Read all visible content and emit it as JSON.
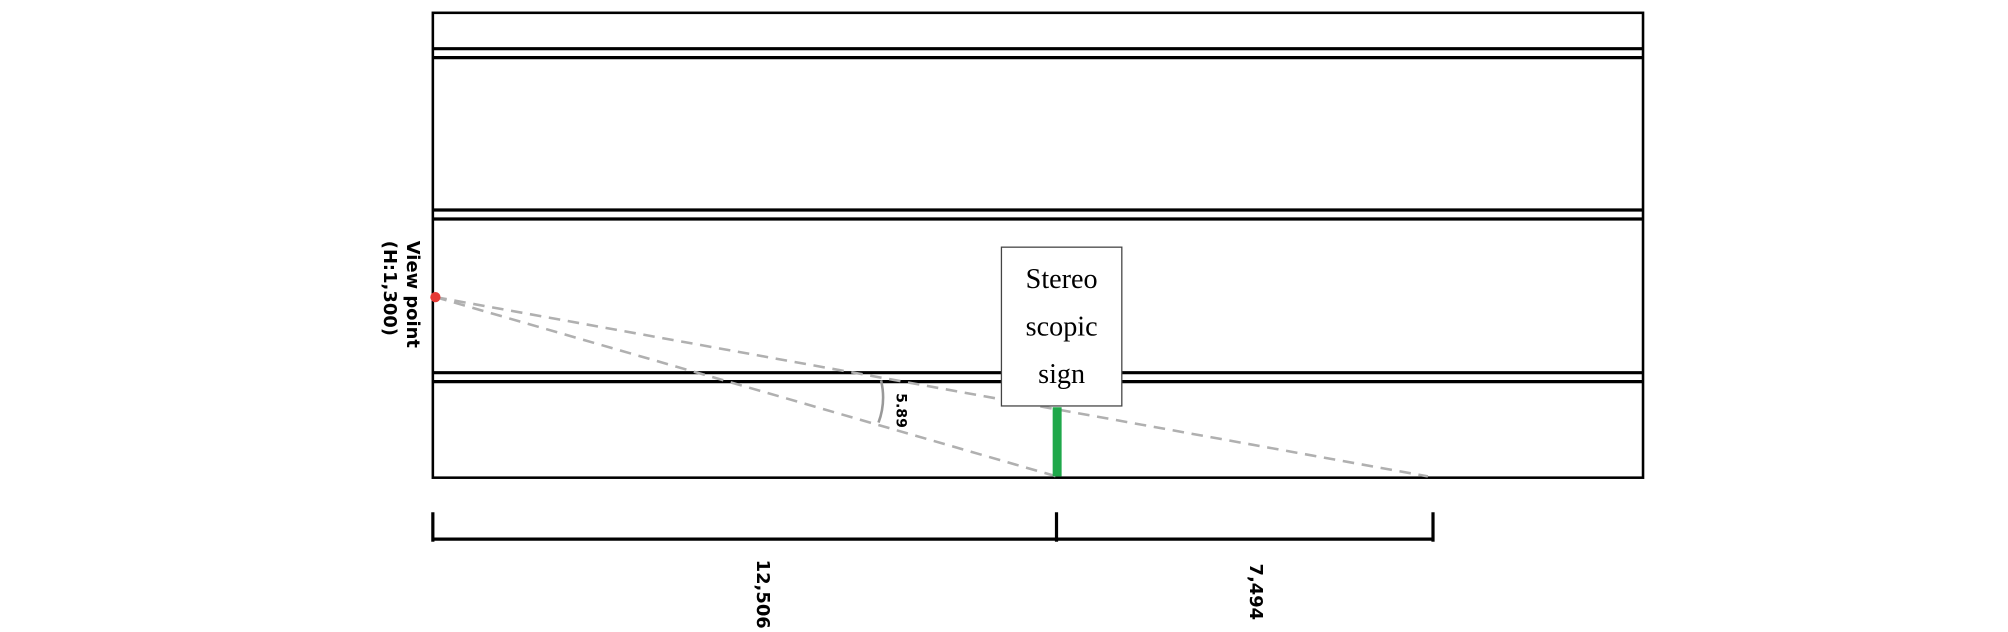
{
  "view_point": {
    "label": "View point",
    "height": "(H:1,300)"
  },
  "sign": {
    "lines": [
      "Stereo",
      "scopic",
      "sign"
    ]
  },
  "angle": "5.89",
  "dimensions": [
    "12,506",
    "7,494"
  ]
}
